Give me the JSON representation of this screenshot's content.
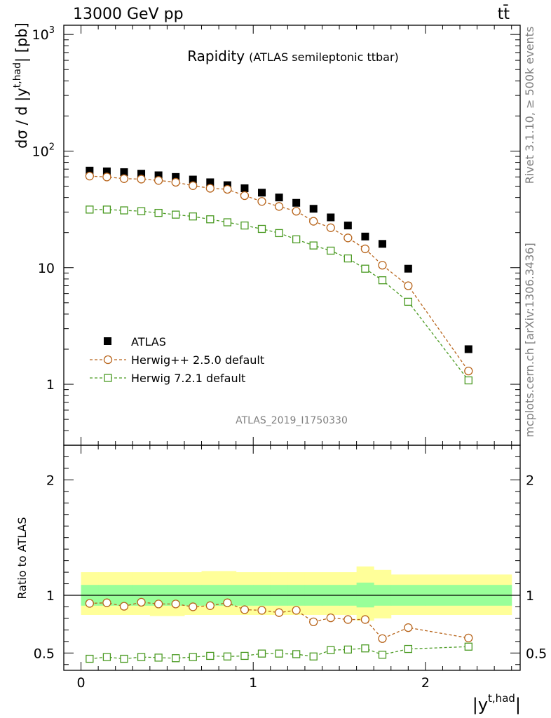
{
  "header": {
    "energy_label": "13000 GeV pp",
    "process_label": "tt̄"
  },
  "side_labels": {
    "rivet": "Rivet 3.1.10, ≥ 500k events",
    "mcplots": "mcplots.cern.ch [arXiv:1306.3436]"
  },
  "watermark": "ATLAS_2019_I1750330",
  "chart_data": {
    "type": "scatter",
    "title": "Rapidity",
    "subtitle": "(ATLAS semileptonic ttbar)",
    "xlabel": "|y^{t,had}|",
    "xlabel_main": "|y",
    "xlabel_sup": "t,had",
    "xlabel_end": "|",
    "ylabel": "dσ / d |y^{t,had}| [pb]",
    "ylabel_main": "dσ / d |y",
    "ylabel_sup": "t,had",
    "ylabel_end": "| [pb]",
    "ratio_ylabel": "Ratio to ATLAS",
    "xlim": [
      -0.1,
      2.55
    ],
    "ylim": [
      0.3,
      1200
    ],
    "yscale": "log",
    "ratio_ylim": [
      0.35,
      2.3
    ],
    "x_ticks": [
      0,
      1,
      2
    ],
    "x_tick_labels": [
      "0",
      "1",
      "2"
    ],
    "y_ticks_major": [
      1,
      10,
      100,
      1000
    ],
    "y_tick_labels": [
      "1",
      "10",
      "10",
      "10"
    ],
    "y_tick_sups": [
      "",
      "",
      "2",
      "3"
    ],
    "ratio_ticks": [
      0.5,
      1,
      2
    ],
    "ratio_tick_labels": [
      "0.5",
      "1",
      "2"
    ],
    "x": [
      0.05,
      0.15,
      0.25,
      0.35,
      0.45,
      0.55,
      0.65,
      0.75,
      0.85,
      0.95,
      1.05,
      1.15,
      1.25,
      1.35,
      1.45,
      1.55,
      1.65,
      1.75,
      1.9,
      2.25
    ],
    "bin_edges": [
      0,
      0.1,
      0.2,
      0.3,
      0.4,
      0.5,
      0.6,
      0.7,
      0.8,
      0.9,
      1.0,
      1.1,
      1.2,
      1.3,
      1.4,
      1.5,
      1.6,
      1.7,
      1.8,
      2.0,
      2.5
    ],
    "series": [
      {
        "name": "ATLAS",
        "marker": "filled-square",
        "color": "#000000",
        "values": [
          68,
          67,
          66,
          64,
          62,
          60,
          57,
          54,
          51,
          48,
          44,
          40,
          36,
          32,
          27,
          23,
          18.5,
          16,
          9.8,
          2.0
        ]
      },
      {
        "name": "Herwig++ 2.5.0 default",
        "marker": "open-circle",
        "color": "#b8651c",
        "values": [
          61,
          60,
          58,
          57.5,
          56,
          54,
          50.5,
          48,
          47,
          41.5,
          37,
          33.5,
          30.5,
          25,
          22,
          18,
          14.5,
          10.5,
          7,
          1.3
        ],
        "ratio": [
          0.93,
          0.935,
          0.905,
          0.94,
          0.925,
          0.925,
          0.9,
          0.91,
          0.935,
          0.875,
          0.87,
          0.85,
          0.87,
          0.77,
          0.805,
          0.79,
          0.79,
          0.625,
          0.72,
          0.63
        ]
      },
      {
        "name": "Herwig 7.2.1 default",
        "marker": "open-square",
        "color": "#4a9a22",
        "values": [
          31.5,
          31.5,
          31,
          30.5,
          29.5,
          28.5,
          27.5,
          26,
          24.5,
          23,
          21.5,
          19.8,
          17.5,
          15.5,
          14,
          12,
          9.8,
          7.8,
          5.1,
          1.08
        ],
        "ratio": [
          0.45,
          0.465,
          0.45,
          0.465,
          0.46,
          0.455,
          0.465,
          0.475,
          0.47,
          0.475,
          0.495,
          0.495,
          0.49,
          0.47,
          0.525,
          0.53,
          0.54,
          0.485,
          0.535,
          0.555
        ]
      }
    ],
    "ratio_band_inner": [
      [
        0.91,
        1.09
      ],
      [
        0.91,
        1.09
      ],
      [
        0.91,
        1.09
      ],
      [
        0.91,
        1.09
      ],
      [
        0.91,
        1.09
      ],
      [
        0.91,
        1.09
      ],
      [
        0.91,
        1.09
      ],
      [
        0.91,
        1.09
      ],
      [
        0.91,
        1.09
      ],
      [
        0.91,
        1.09
      ],
      [
        0.91,
        1.09
      ],
      [
        0.91,
        1.09
      ],
      [
        0.91,
        1.09
      ],
      [
        0.91,
        1.09
      ],
      [
        0.91,
        1.09
      ],
      [
        0.91,
        1.09
      ],
      [
        0.895,
        1.11
      ],
      [
        0.91,
        1.09
      ],
      [
        0.91,
        1.09
      ],
      [
        0.91,
        1.09
      ]
    ],
    "ratio_band_outer": [
      [
        0.83,
        1.2
      ],
      [
        0.83,
        1.2
      ],
      [
        0.83,
        1.2
      ],
      [
        0.83,
        1.2
      ],
      [
        0.82,
        1.2
      ],
      [
        0.82,
        1.2
      ],
      [
        0.83,
        1.2
      ],
      [
        0.83,
        1.21
      ],
      [
        0.83,
        1.21
      ],
      [
        0.83,
        1.2
      ],
      [
        0.83,
        1.2
      ],
      [
        0.83,
        1.2
      ],
      [
        0.83,
        1.2
      ],
      [
        0.83,
        1.2
      ],
      [
        0.83,
        1.2
      ],
      [
        0.83,
        1.2
      ],
      [
        0.78,
        1.25
      ],
      [
        0.8,
        1.22
      ],
      [
        0.83,
        1.18
      ],
      [
        0.83,
        1.18
      ]
    ],
    "legend_position": "bottom-left"
  }
}
